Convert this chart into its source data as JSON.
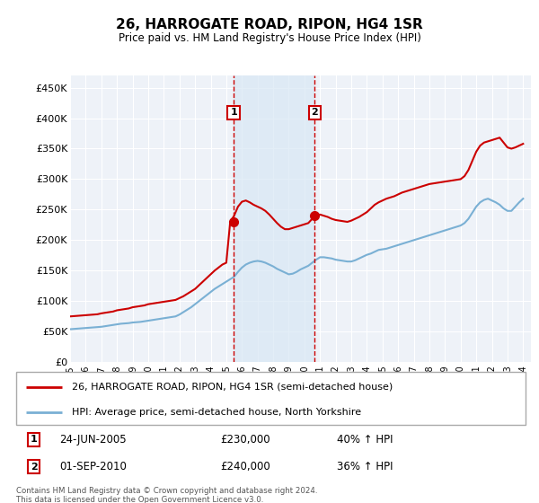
{
  "title": "26, HARROGATE ROAD, RIPON, HG4 1SR",
  "subtitle": "Price paid vs. HM Land Registry's House Price Index (HPI)",
  "footer": "Contains HM Land Registry data © Crown copyright and database right 2024.\nThis data is licensed under the Open Government Licence v3.0.",
  "legend_line1": "26, HARROGATE ROAD, RIPON, HG4 1SR (semi-detached house)",
  "legend_line2": "HPI: Average price, semi-detached house, North Yorkshire",
  "annotation1_date": "24-JUN-2005",
  "annotation1_price": "£230,000",
  "annotation1_hpi": "40% ↑ HPI",
  "annotation2_date": "01-SEP-2010",
  "annotation2_price": "£240,000",
  "annotation2_hpi": "36% ↑ HPI",
  "red_color": "#cc0000",
  "blue_color": "#7ab0d4",
  "dashed_color": "#cc0000",
  "background_color": "#ffffff",
  "plot_bg_color": "#eef2f8",
  "shade_color": "#d8e8f4",
  "grid_color": "#ffffff",
  "ylim": [
    0,
    470000
  ],
  "yticks": [
    0,
    50000,
    100000,
    150000,
    200000,
    250000,
    300000,
    350000,
    400000,
    450000
  ],
  "hpi_red_data": {
    "years": [
      1995,
      1995.25,
      1995.5,
      1995.75,
      1996,
      1996.25,
      1996.5,
      1996.75,
      1997,
      1997.25,
      1997.5,
      1997.75,
      1998,
      1998.25,
      1998.5,
      1998.75,
      1999,
      1999.25,
      1999.5,
      1999.75,
      2000,
      2000.25,
      2000.5,
      2000.75,
      2001,
      2001.25,
      2001.5,
      2001.75,
      2002,
      2002.25,
      2002.5,
      2002.75,
      2003,
      2003.25,
      2003.5,
      2003.75,
      2004,
      2004.25,
      2004.5,
      2004.75,
      2005,
      2005.25,
      2005.5,
      2005.75,
      2006,
      2006.25,
      2006.5,
      2006.75,
      2007,
      2007.25,
      2007.5,
      2007.75,
      2008,
      2008.25,
      2008.5,
      2008.75,
      2009,
      2009.25,
      2009.5,
      2009.75,
      2010,
      2010.25,
      2010.5,
      2010.75,
      2011,
      2011.25,
      2011.5,
      2011.75,
      2012,
      2012.25,
      2012.5,
      2012.75,
      2013,
      2013.25,
      2013.5,
      2013.75,
      2014,
      2014.25,
      2014.5,
      2014.75,
      2015,
      2015.25,
      2015.5,
      2015.75,
      2016,
      2016.25,
      2016.5,
      2016.75,
      2017,
      2017.25,
      2017.5,
      2017.75,
      2018,
      2018.25,
      2018.5,
      2018.75,
      2019,
      2019.25,
      2019.5,
      2019.75,
      2020,
      2020.25,
      2020.5,
      2020.75,
      2021,
      2021.25,
      2021.5,
      2021.75,
      2022,
      2022.25,
      2022.5,
      2022.75,
      2023,
      2023.25,
      2023.5,
      2023.75,
      2024
    ],
    "values": [
      75000,
      75500,
      76000,
      76500,
      77000,
      77500,
      78000,
      78500,
      80000,
      81000,
      82000,
      83000,
      85000,
      86000,
      87000,
      88000,
      90000,
      91000,
      92000,
      93000,
      95000,
      96000,
      97000,
      98000,
      99000,
      100000,
      101000,
      102000,
      105000,
      108000,
      112000,
      116000,
      120000,
      126000,
      132000,
      138000,
      144000,
      150000,
      155000,
      160000,
      163000,
      230000,
      240000,
      255000,
      263000,
      265000,
      262000,
      258000,
      255000,
      252000,
      248000,
      242000,
      235000,
      228000,
      222000,
      218000,
      218000,
      220000,
      222000,
      224000,
      226000,
      228000,
      235000,
      240000,
      242000,
      240000,
      238000,
      235000,
      233000,
      232000,
      231000,
      230000,
      232000,
      235000,
      238000,
      242000,
      246000,
      252000,
      258000,
      262000,
      265000,
      268000,
      270000,
      272000,
      275000,
      278000,
      280000,
      282000,
      284000,
      286000,
      288000,
      290000,
      292000,
      293000,
      294000,
      295000,
      296000,
      297000,
      298000,
      299000,
      300000,
      305000,
      315000,
      330000,
      345000,
      355000,
      360000,
      362000,
      364000,
      366000,
      368000,
      360000,
      352000,
      350000,
      352000,
      355000,
      358000
    ]
  },
  "hpi_blue_data": {
    "years": [
      1995,
      1995.25,
      1995.5,
      1995.75,
      1996,
      1996.25,
      1996.5,
      1996.75,
      1997,
      1997.25,
      1997.5,
      1997.75,
      1998,
      1998.25,
      1998.5,
      1998.75,
      1999,
      1999.25,
      1999.5,
      1999.75,
      2000,
      2000.25,
      2000.5,
      2000.75,
      2001,
      2001.25,
      2001.5,
      2001.75,
      2002,
      2002.25,
      2002.5,
      2002.75,
      2003,
      2003.25,
      2003.5,
      2003.75,
      2004,
      2004.25,
      2004.5,
      2004.75,
      2005,
      2005.25,
      2005.5,
      2005.75,
      2006,
      2006.25,
      2006.5,
      2006.75,
      2007,
      2007.25,
      2007.5,
      2007.75,
      2008,
      2008.25,
      2008.5,
      2008.75,
      2009,
      2009.25,
      2009.5,
      2009.75,
      2010,
      2010.25,
      2010.5,
      2010.75,
      2011,
      2011.25,
      2011.5,
      2011.75,
      2012,
      2012.25,
      2012.5,
      2012.75,
      2013,
      2013.25,
      2013.5,
      2013.75,
      2014,
      2014.25,
      2014.5,
      2014.75,
      2015,
      2015.25,
      2015.5,
      2015.75,
      2016,
      2016.25,
      2016.5,
      2016.75,
      2017,
      2017.25,
      2017.5,
      2017.75,
      2018,
      2018.25,
      2018.5,
      2018.75,
      2019,
      2019.25,
      2019.5,
      2019.75,
      2020,
      2020.25,
      2020.5,
      2020.75,
      2021,
      2021.25,
      2021.5,
      2021.75,
      2022,
      2022.25,
      2022.5,
      2022.75,
      2023,
      2023.25,
      2023.5,
      2023.75,
      2024
    ],
    "values": [
      54000,
      54500,
      55000,
      55500,
      56000,
      56500,
      57000,
      57500,
      58000,
      59000,
      60000,
      61000,
      62000,
      63000,
      63500,
      64000,
      65000,
      65500,
      66000,
      67000,
      68000,
      69000,
      70000,
      71000,
      72000,
      73000,
      74000,
      75000,
      78000,
      82000,
      86000,
      90000,
      95000,
      100000,
      105000,
      110000,
      115000,
      120000,
      124000,
      128000,
      132000,
      136000,
      140000,
      148000,
      155000,
      160000,
      163000,
      165000,
      166000,
      165000,
      163000,
      160000,
      157000,
      153000,
      150000,
      147000,
      144000,
      145000,
      148000,
      152000,
      155000,
      158000,
      163000,
      168000,
      172000,
      172000,
      171000,
      170000,
      168000,
      167000,
      166000,
      165000,
      165000,
      167000,
      170000,
      173000,
      176000,
      178000,
      181000,
      184000,
      185000,
      186000,
      188000,
      190000,
      192000,
      194000,
      196000,
      198000,
      200000,
      202000,
      204000,
      206000,
      208000,
      210000,
      212000,
      214000,
      216000,
      218000,
      220000,
      222000,
      224000,
      228000,
      235000,
      245000,
      255000,
      262000,
      266000,
      268000,
      265000,
      262000,
      258000,
      252000,
      248000,
      248000,
      255000,
      262000,
      268000
    ]
  },
  "sale1_x": 2005.47,
  "sale1_y": 230000,
  "sale2_x": 2010.66,
  "sale2_y": 240000,
  "xmin": 1995,
  "xmax": 2024.5
}
